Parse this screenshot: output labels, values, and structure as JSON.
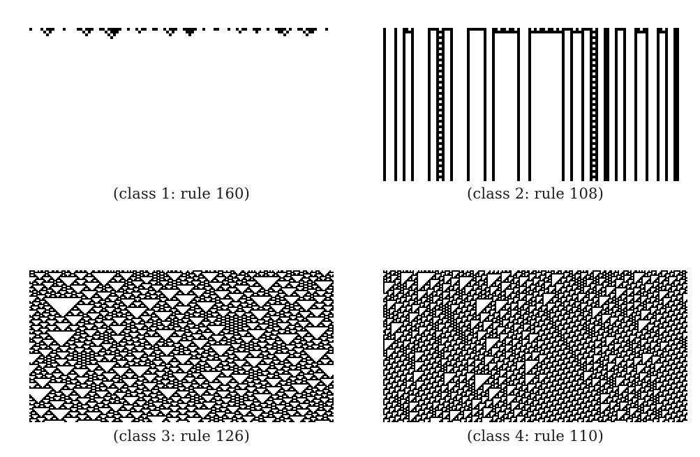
{
  "panels": [
    {
      "id": "p1",
      "rule": 160,
      "caption": "(class 1: rule 160)"
    },
    {
      "id": "p2",
      "rule": 108,
      "caption": "(class 2: rule 108)"
    },
    {
      "id": "p3",
      "rule": 126,
      "caption": "(class 3: rule 126)"
    },
    {
      "id": "p4",
      "rule": 110,
      "caption": "(class 4: rule 110)"
    }
  ],
  "colors": {
    "alive": "#000000",
    "dead": "#ffffff"
  }
}
